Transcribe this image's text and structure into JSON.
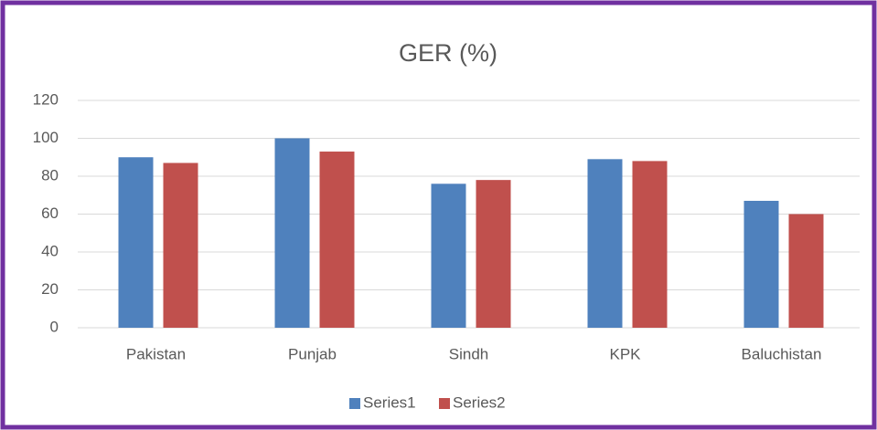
{
  "chart_data": {
    "type": "bar",
    "title": "GER (%)",
    "categories": [
      "Pakistan",
      "Punjab",
      "Sindh",
      "KPK",
      "Baluchistan"
    ],
    "series": [
      {
        "name": "Series1",
        "color": "#4f81bd",
        "values": [
          90,
          100,
          76,
          89,
          67
        ]
      },
      {
        "name": "Series2",
        "color": "#c0504d",
        "values": [
          87,
          93,
          78,
          88,
          60
        ]
      }
    ],
    "ylim": [
      0,
      120
    ],
    "yticks": [
      0,
      20,
      40,
      60,
      80,
      100,
      120
    ],
    "grid": true,
    "legend": "bottom"
  }
}
